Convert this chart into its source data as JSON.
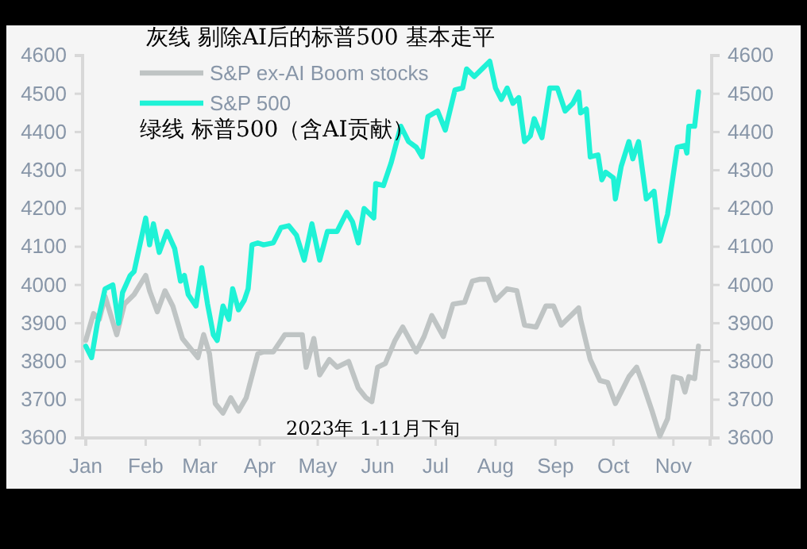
{
  "chart_data": {
    "type": "line",
    "annotations": [
      "灰线 剔除AI后的标普500 基本走平",
      "绿线 标普500（含AI贡献）",
      "2023年 1-11月下旬"
    ],
    "xlim": [
      "2023-01-01",
      "2023-11-20"
    ],
    "xticks": [
      {
        "value": "2023-01-01",
        "label": "Jan"
      },
      {
        "value": "2023-02-01",
        "label": "Feb"
      },
      {
        "value": "2023-03-01",
        "label": "Mar"
      },
      {
        "value": "2023-04-01",
        "label": "Apr"
      },
      {
        "value": "2023-05-01",
        "label": "May"
      },
      {
        "value": "2023-06-01",
        "label": "Jun"
      },
      {
        "value": "2023-07-01",
        "label": "Jul"
      },
      {
        "value": "2023-08-01",
        "label": "Aug"
      },
      {
        "value": "2023-09-01",
        "label": "Sep"
      },
      {
        "value": "2023-10-01",
        "label": "Oct"
      },
      {
        "value": "2023-11-01",
        "label": "Nov"
      }
    ],
    "ylim": [
      3600,
      4600
    ],
    "yticks": [
      3600,
      3700,
      3800,
      3900,
      4000,
      4100,
      4200,
      4300,
      4400,
      4500,
      4600
    ],
    "y2lim": [
      3600,
      4600
    ],
    "y2ticks": [
      3600,
      3700,
      3800,
      3900,
      4000,
      4100,
      4200,
      4300,
      4400,
      4500,
      4600
    ],
    "grid": false,
    "legend": "top left",
    "marker": "none",
    "line_style": "solid",
    "ref_lines": [
      {
        "axis": "y",
        "value": 3830,
        "color": "#b4b4b4"
      }
    ],
    "series": [
      {
        "name": "S&P ex-AI Boom stocks",
        "color": "#bfc4c4",
        "x": [
          "2023-01-01",
          "2023-01-05",
          "2023-01-08",
          "2023-01-11",
          "2023-01-17",
          "2023-01-21",
          "2023-01-26",
          "2023-02-01",
          "2023-02-03",
          "2023-02-07",
          "2023-02-11",
          "2023-02-15",
          "2023-02-20",
          "2023-02-28",
          "2023-03-03",
          "2023-03-06",
          "2023-03-09",
          "2023-03-13",
          "2023-03-17",
          "2023-03-21",
          "2023-03-25",
          "2023-03-31",
          "2023-04-03",
          "2023-04-08",
          "2023-04-14",
          "2023-04-19",
          "2023-04-23",
          "2023-04-25",
          "2023-04-29",
          "2023-05-02",
          "2023-05-07",
          "2023-05-11",
          "2023-05-17",
          "2023-05-22",
          "2023-05-26",
          "2023-05-29",
          "2023-06-01",
          "2023-06-05",
          "2023-06-10",
          "2023-06-14",
          "2023-06-21",
          "2023-06-25",
          "2023-06-29",
          "2023-07-05",
          "2023-07-10",
          "2023-07-16",
          "2023-07-20",
          "2023-07-24",
          "2023-07-28",
          "2023-08-01",
          "2023-08-07",
          "2023-08-12",
          "2023-08-16",
          "2023-08-22",
          "2023-08-27",
          "2023-08-31",
          "2023-09-04",
          "2023-09-13",
          "2023-09-14",
          "2023-09-19",
          "2023-09-24",
          "2023-09-28",
          "2023-10-02",
          "2023-10-09",
          "2023-10-13",
          "2023-10-16",
          "2023-10-21",
          "2023-10-25",
          "2023-10-29",
          "2023-11-01",
          "2023-11-05",
          "2023-11-07",
          "2023-11-09",
          "2023-11-12",
          "2023-11-14"
        ],
        "values": [
          3855,
          3925,
          3910,
          3970,
          3870,
          3950,
          3975,
          4025,
          3985,
          3930,
          3985,
          3945,
          3860,
          3810,
          3870,
          3820,
          3690,
          3665,
          3705,
          3670,
          3705,
          3820,
          3825,
          3825,
          3870,
          3870,
          3870,
          3785,
          3860,
          3765,
          3805,
          3785,
          3800,
          3730,
          3705,
          3695,
          3785,
          3795,
          3855,
          3890,
          3825,
          3865,
          3920,
          3865,
          3950,
          3955,
          4010,
          4015,
          4015,
          3960,
          3990,
          3985,
          3895,
          3890,
          3945,
          3945,
          3895,
          3940,
          3910,
          3805,
          3750,
          3745,
          3690,
          3760,
          3785,
          3745,
          3670,
          3605,
          3650,
          3760,
          3755,
          3720,
          3760,
          3755,
          3840
        ]
      },
      {
        "name": "S&P 500",
        "color": "#1ff2d6",
        "x": [
          "2023-01-01",
          "2023-01-04",
          "2023-01-07",
          "2023-01-11",
          "2023-01-15",
          "2023-01-18",
          "2023-01-20",
          "2023-01-24",
          "2023-01-26",
          "2023-02-01",
          "2023-02-03",
          "2023-02-05",
          "2023-02-08",
          "2023-02-12",
          "2023-02-16",
          "2023-02-19",
          "2023-02-21",
          "2023-02-23",
          "2023-02-27",
          "2023-03-02",
          "2023-03-05",
          "2023-03-08",
          "2023-03-10",
          "2023-03-13",
          "2023-03-16",
          "2023-03-18",
          "2023-03-21",
          "2023-03-24",
          "2023-03-26",
          "2023-03-28",
          "2023-03-31",
          "2023-04-03",
          "2023-04-08",
          "2023-04-12",
          "2023-04-16",
          "2023-04-20",
          "2023-04-24",
          "2023-04-28",
          "2023-05-02",
          "2023-05-06",
          "2023-05-11",
          "2023-05-16",
          "2023-05-19",
          "2023-05-22",
          "2023-05-25",
          "2023-05-30",
          "2023-05-31",
          "2023-06-04",
          "2023-06-08",
          "2023-06-13",
          "2023-06-17",
          "2023-06-21",
          "2023-06-24",
          "2023-06-27",
          "2023-07-02",
          "2023-07-06",
          "2023-07-11",
          "2023-07-15",
          "2023-07-17",
          "2023-07-21",
          "2023-07-25",
          "2023-07-29",
          "2023-08-01",
          "2023-08-04",
          "2023-08-07",
          "2023-08-10",
          "2023-08-13",
          "2023-08-16",
          "2023-08-19",
          "2023-08-21",
          "2023-08-25",
          "2023-08-29",
          "2023-09-02",
          "2023-09-06",
          "2023-09-10",
          "2023-09-13",
          "2023-09-14",
          "2023-09-17",
          "2023-09-19",
          "2023-09-23",
          "2023-09-25",
          "2023-09-27",
          "2023-10-01",
          "2023-10-02",
          "2023-10-05",
          "2023-10-09",
          "2023-10-11",
          "2023-10-14",
          "2023-10-18",
          "2023-10-22",
          "2023-10-25",
          "2023-10-29",
          "2023-11-03",
          "2023-11-07",
          "2023-11-08",
          "2023-11-09",
          "2023-11-12",
          "2023-11-14"
        ],
        "values": [
          3840,
          3810,
          3900,
          3990,
          4000,
          3900,
          3980,
          4025,
          4035,
          4175,
          4105,
          4160,
          4085,
          4140,
          4095,
          4010,
          4025,
          3975,
          3945,
          4045,
          3950,
          3870,
          3855,
          3945,
          3910,
          3990,
          3935,
          3960,
          3990,
          4105,
          4110,
          4105,
          4110,
          4150,
          4155,
          4130,
          4065,
          4160,
          4065,
          4140,
          4140,
          4190,
          4165,
          4110,
          4200,
          4175,
          4265,
          4260,
          4320,
          4415,
          4375,
          4360,
          4335,
          4440,
          4455,
          4405,
          4510,
          4515,
          4565,
          4545,
          4565,
          4585,
          4515,
          4485,
          4515,
          4475,
          4490,
          4375,
          4390,
          4435,
          4385,
          4515,
          4515,
          4455,
          4475,
          4505,
          4450,
          4460,
          4335,
          4340,
          4275,
          4295,
          4280,
          4225,
          4310,
          4375,
          4330,
          4375,
          4225,
          4245,
          4115,
          4185,
          4360,
          4365,
          4345,
          4415,
          4415,
          4505
        ]
      }
    ]
  }
}
